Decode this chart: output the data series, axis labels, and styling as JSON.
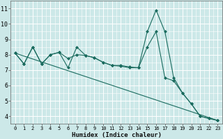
{
  "title": "",
  "xlabel": "Humidex (Indice chaleur)",
  "bg_color": "#cce8e8",
  "grid_color": "#ffffff",
  "line_color": "#1a6b5e",
  "xlim": [
    -0.5,
    23.5
  ],
  "ylim": [
    3.5,
    11.5
  ],
  "xticks": [
    0,
    1,
    2,
    3,
    4,
    5,
    6,
    7,
    8,
    9,
    10,
    11,
    12,
    13,
    14,
    15,
    16,
    17,
    18,
    19,
    20,
    21,
    22,
    23
  ],
  "yticks": [
    4,
    5,
    6,
    7,
    8,
    9,
    10,
    11
  ],
  "series1": {
    "x": [
      0,
      1,
      2,
      3,
      4,
      5,
      6,
      7,
      8,
      9,
      10,
      11,
      12,
      13,
      14,
      15,
      16,
      17,
      18,
      19,
      20,
      21,
      22,
      23
    ],
    "y": [
      8.1,
      7.4,
      8.5,
      7.4,
      8.0,
      8.15,
      7.15,
      8.5,
      7.95,
      7.8,
      7.5,
      7.3,
      7.3,
      7.2,
      7.15,
      8.5,
      9.5,
      6.5,
      6.3,
      5.5,
      4.8,
      4.0,
      3.85,
      3.72
    ]
  },
  "series2": {
    "x": [
      0,
      1,
      2,
      3,
      4,
      5,
      6,
      7,
      8,
      9,
      10,
      11,
      12,
      13,
      14,
      15,
      16,
      17,
      18,
      19,
      20,
      21,
      22,
      23
    ],
    "y": [
      8.1,
      7.4,
      8.5,
      7.4,
      8.0,
      8.15,
      7.75,
      8.0,
      7.95,
      7.8,
      7.5,
      7.3,
      7.25,
      7.15,
      7.15,
      9.5,
      10.9,
      9.5,
      6.5,
      5.5,
      4.8,
      4.0,
      3.85,
      3.72
    ]
  },
  "series3": {
    "x": [
      0,
      23
    ],
    "y": [
      8.1,
      3.72
    ]
  }
}
